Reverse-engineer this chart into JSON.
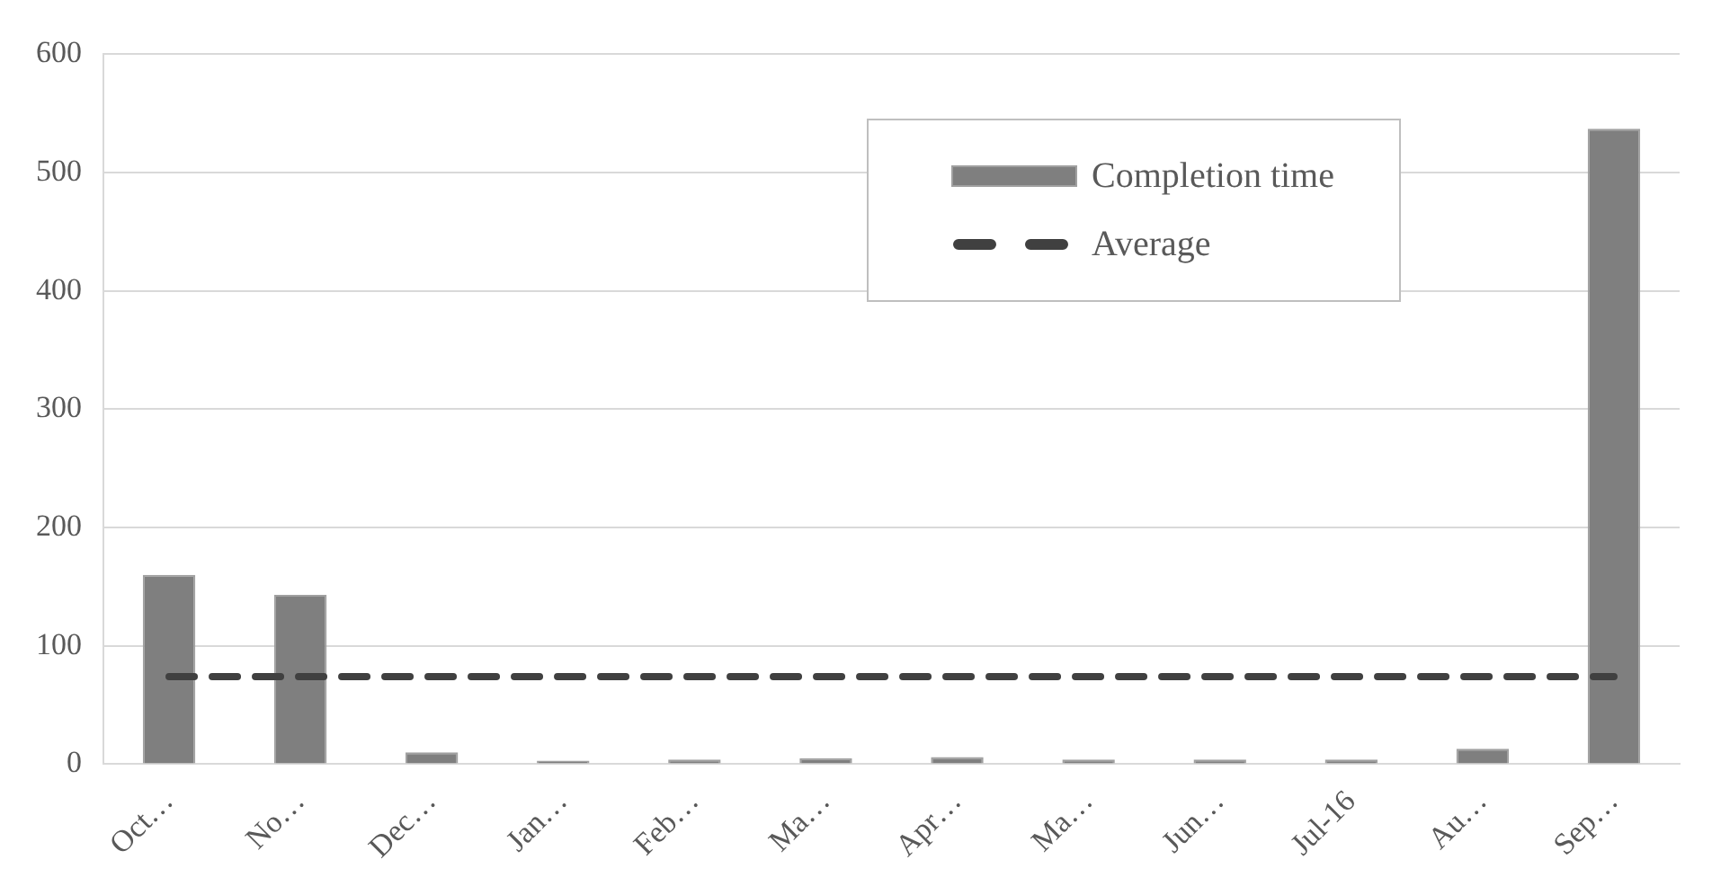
{
  "chart_data": {
    "type": "bar",
    "categories": [
      "Oct…",
      "No…",
      "Dec…",
      "Jan…",
      "Feb…",
      "Ma…",
      "Apr…",
      "Ma…",
      "Jun…",
      "Jul-16",
      "Au…",
      "Sep…"
    ],
    "series": [
      {
        "name": "Completion time",
        "color": "#7f7f7f",
        "values": [
          160,
          143,
          10,
          3,
          4,
          5,
          6,
          4,
          4,
          4,
          13,
          537
        ]
      },
      {
        "name": "Average",
        "type": "line",
        "color": "#404040",
        "line_style": "dashed",
        "marker": "none",
        "values": [
          74,
          74,
          74,
          74,
          74,
          74,
          74,
          74,
          74,
          74,
          74,
          74
        ]
      }
    ],
    "ylim": [
      0,
      600
    ],
    "yticks": [
      0,
      100,
      200,
      300,
      400,
      500,
      600
    ],
    "grid": "y",
    "legend": "top right"
  }
}
